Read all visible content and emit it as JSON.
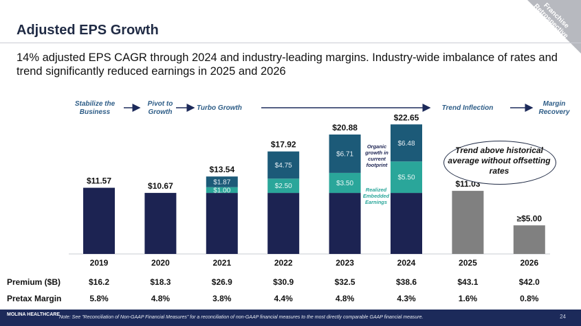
{
  "header": {
    "title": "Adjusted EPS Growth",
    "subtitle": "14% adjusted EPS CAGR through 2024 and industry-leading margins.  Industry-wide imbalance of rates and trend significantly reduced earnings in 2025 and 2026",
    "corner_badge": "Franchise Retrospective"
  },
  "phases": {
    "stabilize": "Stabilize the Business",
    "pivot": "Pivot to Growth",
    "turbo": "Turbo Growth",
    "trend_inflection": "Trend Inflection",
    "margin_recovery": "Margin Recovery"
  },
  "chart_data": {
    "type": "bar",
    "categories": [
      "2019",
      "2020",
      "2021",
      "2022",
      "2023",
      "2024",
      "2025",
      "2026"
    ],
    "total_labels": [
      "$11.57",
      "$10.67",
      "$13.54",
      "$17.92",
      "$20.88",
      "$22.65",
      "$11.03",
      "≥$5.00"
    ],
    "totals": [
      11.57,
      10.67,
      13.54,
      17.92,
      20.88,
      22.65,
      11.03,
      5.0
    ],
    "base": [
      11.57,
      10.67,
      10.67,
      10.67,
      10.67,
      10.67,
      11.03,
      5.0
    ],
    "embedded": [
      0,
      0,
      1.0,
      2.5,
      3.5,
      5.5,
      0,
      0
    ],
    "organic": [
      0,
      0,
      1.87,
      4.75,
      6.71,
      6.48,
      0,
      0
    ],
    "embedded_labels": [
      "",
      "",
      "$1.00",
      "$2.50",
      "$3.50",
      "$5.50",
      "",
      ""
    ],
    "organic_labels": [
      "",
      "",
      "$1.87",
      "$4.75",
      "$6.71",
      "$6.48",
      "",
      ""
    ],
    "ylim": [
      0,
      24
    ],
    "colors": {
      "base": "#1c2352",
      "embedded": "#2aa69a",
      "organic": "#1c5a78",
      "declined": "#808080"
    },
    "annotations": {
      "organic": "Organic growth in current footprint",
      "embedded": "Realized Embedded Earnings",
      "callout": "Trend above historical average without offsetting rates"
    }
  },
  "table": {
    "premium_label": "Premium ($B)",
    "premium": [
      "$16.2",
      "$18.3",
      "$26.9",
      "$30.9",
      "$32.5",
      "$38.6",
      "$43.1",
      "$42.0"
    ],
    "margin_label": "Pretax Margin",
    "margin": [
      "5.8%",
      "4.8%",
      "3.8%",
      "4.4%",
      "4.8%",
      "4.3%",
      "1.6%",
      "0.8%"
    ]
  },
  "footer": {
    "note": "Note: See \"Reconciliation of Non-GAAP Financial Measures\" for a reconciliation of non-GAAP financial measures to the most directly comparable GAAP financial measure.",
    "logo": "MOLINA HEALTHCARE",
    "page": "24"
  }
}
